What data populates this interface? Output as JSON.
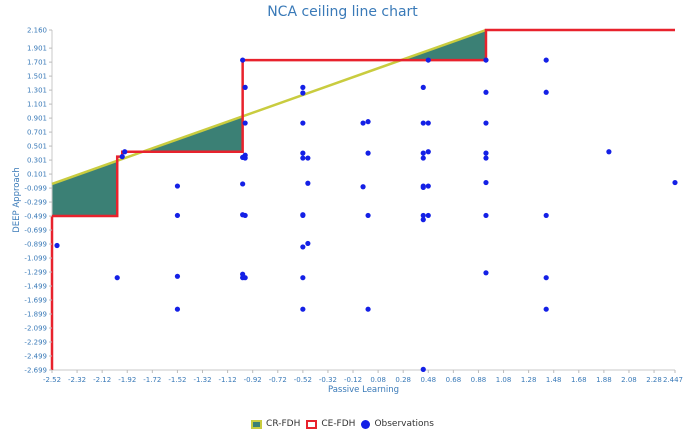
{
  "chart_data": {
    "type": "scatter",
    "title": "NCA ceiling line chart",
    "xlabel": "Passive Learning",
    "ylabel": "DEEP Approach",
    "xlim": [
      -2.52,
      2.447
    ],
    "ylim": [
      -2.699,
      2.16
    ],
    "x_ticks": [
      "-2.52",
      "-2.32",
      "-2.12",
      "-1.92",
      "-1.72",
      "-1.52",
      "-1.32",
      "-1.12",
      "-0.92",
      "-0.72",
      "-0.52",
      "-0.32",
      "-0.12",
      "0.08",
      "0.28",
      "0.48",
      "0.68",
      "0.88",
      "1.08",
      "1.28",
      "1.48",
      "1.68",
      "1.88",
      "2.08",
      "2.28",
      "2.447"
    ],
    "y_ticks": [
      "2.160",
      "1.901",
      "1.701",
      "1.501",
      "1.301",
      "1.101",
      "0.901",
      "0.701",
      "0.501",
      "0.301",
      "0.101",
      "-0.099",
      "-0.299",
      "-0.499",
      "-0.699",
      "-0.899",
      "-1.099",
      "-1.299",
      "-1.499",
      "-1.699",
      "-1.899",
      "-2.099",
      "-2.299",
      "-2.499",
      "-2.699"
    ],
    "legend": [
      "CR-FDH",
      "CE-FDH",
      "Observations"
    ],
    "legend_position": "bottom",
    "colors": {
      "cr_fill": "#3b8075",
      "cr_line": "#c9cc3f",
      "ce_line": "#e8222d",
      "observations": "#1420e6",
      "axis_text": "#3a7ab8"
    },
    "ce_fdh": [
      [
        -2.52,
        -0.499
      ],
      [
        -2.0,
        -0.499
      ],
      [
        -2.0,
        0.35
      ],
      [
        -1.96,
        0.35
      ],
      [
        -1.96,
        0.42
      ],
      [
        -1.0,
        0.42
      ],
      [
        -1.0,
        1.73
      ],
      [
        0.94,
        1.73
      ],
      [
        0.94,
        2.16
      ],
      [
        2.447,
        2.16
      ]
    ],
    "cr_fdh": [
      [
        -2.52,
        -0.04
      ],
      [
        0.94,
        2.16
      ]
    ],
    "series": [
      {
        "name": "Observations",
        "points": [
          [
            -2.48,
            -0.92
          ],
          [
            -2.0,
            -1.38
          ],
          [
            -1.96,
            0.35
          ],
          [
            -1.94,
            0.42
          ],
          [
            -1.52,
            -0.07
          ],
          [
            -1.52,
            -0.49
          ],
          [
            -1.52,
            -1.36
          ],
          [
            -1.52,
            -1.83
          ],
          [
            -1.0,
            1.73
          ],
          [
            -1.0,
            -0.04
          ],
          [
            -1.0,
            0.34
          ],
          [
            -1.0,
            -0.48
          ],
          [
            -1.0,
            -1.33
          ],
          [
            -1.0,
            -1.38
          ],
          [
            -0.98,
            1.34
          ],
          [
            -0.98,
            0.83
          ],
          [
            -0.98,
            0.33
          ],
          [
            -0.98,
            0.37
          ],
          [
            -0.98,
            -0.49
          ],
          [
            -0.98,
            -1.38
          ],
          [
            -0.52,
            1.34
          ],
          [
            -0.52,
            1.26
          ],
          [
            -0.52,
            0.83
          ],
          [
            -0.52,
            0.4
          ],
          [
            -0.52,
            0.33
          ],
          [
            -0.52,
            -0.48
          ],
          [
            -0.52,
            -0.49
          ],
          [
            -0.52,
            -0.94
          ],
          [
            -0.52,
            -1.38
          ],
          [
            -0.52,
            -1.83
          ],
          [
            -0.48,
            0.33
          ],
          [
            -0.48,
            -0.03
          ],
          [
            -0.48,
            -0.89
          ],
          [
            -0.04,
            0.83
          ],
          [
            -0.04,
            -0.08
          ],
          [
            0.0,
            0.85
          ],
          [
            0.0,
            0.4
          ],
          [
            0.0,
            -0.49
          ],
          [
            0.0,
            -1.83
          ],
          [
            0.44,
            1.34
          ],
          [
            0.44,
            0.83
          ],
          [
            0.44,
            0.4
          ],
          [
            0.44,
            0.33
          ],
          [
            0.44,
            -0.07
          ],
          [
            0.44,
            -0.09
          ],
          [
            0.44,
            -0.49
          ],
          [
            0.44,
            -0.55
          ],
          [
            0.44,
            -2.69
          ],
          [
            0.48,
            1.73
          ],
          [
            0.48,
            0.83
          ],
          [
            0.48,
            0.42
          ],
          [
            0.48,
            -0.07
          ],
          [
            0.48,
            -0.49
          ],
          [
            0.94,
            1.73
          ],
          [
            0.94,
            1.27
          ],
          [
            0.94,
            0.83
          ],
          [
            0.94,
            0.4
          ],
          [
            0.94,
            0.33
          ],
          [
            0.94,
            -0.02
          ],
          [
            0.94,
            -0.49
          ],
          [
            0.94,
            -1.31
          ],
          [
            1.42,
            1.73
          ],
          [
            1.42,
            1.27
          ],
          [
            1.42,
            -0.49
          ],
          [
            1.42,
            -1.38
          ],
          [
            1.42,
            -1.83
          ],
          [
            1.92,
            0.42
          ],
          [
            2.447,
            -0.02
          ]
        ]
      }
    ]
  }
}
